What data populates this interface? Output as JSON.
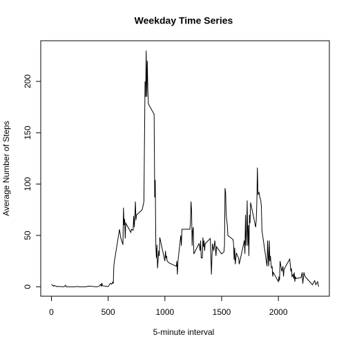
{
  "chart_data": {
    "type": "line",
    "title": "Weekday Time Series",
    "x_label": "5-minute interval",
    "y_label": "Average Number of Steps",
    "xlim": [
      -94.2,
      2449.2
    ],
    "ylim": [
      -9.2,
      239.6
    ],
    "xticks": [
      0,
      500,
      1000,
      1500,
      2000
    ],
    "yticks": [
      0,
      50,
      100,
      150,
      200
    ],
    "color": "#000000",
    "x": [
      0,
      20,
      25,
      45,
      50,
      110,
      125,
      130,
      200,
      235,
      245,
      300,
      330,
      400,
      420,
      435,
      440,
      445,
      450,
      500,
      520,
      530,
      540,
      545,
      550,
      555,
      600,
      610,
      630,
      635,
      640,
      645,
      650,
      655,
      700,
      705,
      720,
      725,
      730,
      735,
      740,
      745,
      750,
      800,
      815,
      825,
      830,
      835,
      840,
      845,
      850,
      855,
      905,
      910,
      915,
      920,
      925,
      930,
      935,
      940,
      945,
      950,
      955,
      1000,
      1005,
      1010,
      1015,
      1020,
      1030,
      1040,
      1100,
      1105,
      1110,
      1115,
      1140,
      1145,
      1150,
      1155,
      1210,
      1220,
      1225,
      1230,
      1235,
      1240,
      1245,
      1250,
      1255,
      1300,
      1305,
      1310,
      1315,
      1320,
      1330,
      1335,
      1340,
      1345,
      1350,
      1355,
      1400,
      1410,
      1415,
      1420,
      1430,
      1440,
      1450,
      1455,
      1500,
      1520,
      1525,
      1530,
      1535,
      1540,
      1550,
      1555,
      1600,
      1605,
      1610,
      1615,
      1620,
      1630,
      1640,
      1650,
      1655,
      1700,
      1705,
      1710,
      1715,
      1720,
      1725,
      1730,
      1735,
      1740,
      1745,
      1750,
      1755,
      1800,
      1805,
      1810,
      1815,
      1820,
      1830,
      1835,
      1840,
      1845,
      1850,
      1855,
      1900,
      1905,
      1910,
      1915,
      1920,
      1925,
      1930,
      1935,
      1940,
      1945,
      1950,
      1955,
      2000,
      2005,
      2010,
      2015,
      2030,
      2040,
      2045,
      2050,
      2055,
      2100,
      2110,
      2115,
      2120,
      2130,
      2135,
      2140,
      2145,
      2150,
      2155,
      2200,
      2210,
      2215,
      2225,
      2235,
      2300,
      2310,
      2320,
      2330,
      2345,
      2355
    ],
    "values": [
      2.3,
      0.5,
      1.4,
      0.2,
      0.4,
      0,
      1.5,
      0,
      0,
      0.3,
      0,
      0,
      0.6,
      0,
      0.5,
      2.5,
      0.2,
      3.6,
      1,
      0.2,
      3.4,
      2.5,
      4.5,
      3,
      20,
      25,
      56,
      48,
      41,
      77,
      60,
      66,
      47,
      62,
      53,
      56,
      55,
      69,
      58,
      68,
      83,
      65,
      70,
      75,
      83,
      200,
      185,
      230,
      185,
      220,
      190,
      178,
      168,
      87,
      104,
      40,
      28,
      41,
      18,
      26,
      35,
      30,
      48,
      25,
      35,
      28,
      30,
      25,
      24,
      23,
      20,
      25,
      12,
      25,
      50,
      40,
      56,
      56,
      56,
      56,
      62,
      83,
      74,
      40,
      55,
      58,
      32,
      42,
      40,
      35,
      45,
      28,
      28,
      48,
      39,
      45,
      35,
      42,
      47,
      12,
      30,
      42,
      35,
      45,
      30,
      39,
      32,
      34,
      40,
      96,
      92,
      70,
      60,
      50,
      46,
      42,
      26,
      38,
      22,
      33,
      30,
      28,
      22,
      45,
      32,
      70,
      40,
      55,
      84,
      40,
      60,
      30,
      70,
      62,
      82,
      58,
      65,
      82,
      116,
      90,
      92,
      88,
      86,
      84,
      78,
      55,
      20,
      45,
      30,
      20,
      45,
      25,
      30,
      22,
      18,
      20,
      10,
      14,
      5,
      10,
      6,
      25,
      15,
      20,
      10,
      17,
      18,
      27,
      15,
      18,
      10,
      12,
      8,
      14,
      5,
      10,
      8,
      9,
      14,
      3,
      14,
      10,
      2,
      4,
      6,
      2,
      5,
      0
    ]
  }
}
